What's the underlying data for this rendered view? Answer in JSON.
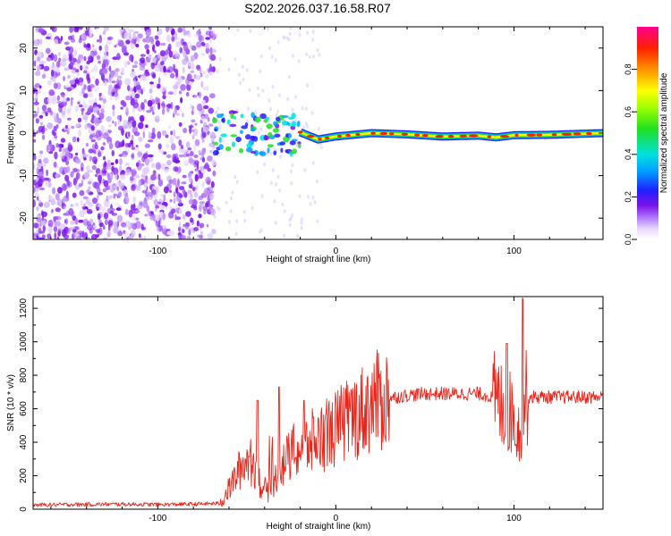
{
  "title": "S202.2026.037.16.58.R07",
  "colors": {
    "snr_line": "#e8261c",
    "noise_purple": "#7a12e8",
    "axis": "#000000",
    "background": "#ffffff"
  },
  "chart_data": [
    {
      "type": "heatmap",
      "name": "spectrogram",
      "xlabel": "Height of straight line (km)",
      "ylabel": "Frequency (Hz)",
      "xlim": [
        -170,
        150
      ],
      "ylim": [
        -25,
        25
      ],
      "xticks": [
        -100,
        0,
        100
      ],
      "yticks": [
        -20,
        -10,
        0,
        10,
        20
      ],
      "noise_region_x": [
        -170,
        -68
      ],
      "transition_region_x": [
        -68,
        -20
      ],
      "carrier_frequency": 0,
      "carrier_track_x": [
        -20,
        -10,
        0,
        20,
        40,
        60,
        80,
        90,
        100,
        120,
        150
      ],
      "carrier_track_freq": [
        0.2,
        -1.5,
        -0.8,
        0.0,
        -0.3,
        -0.8,
        -0.6,
        -1.0,
        -0.5,
        -0.4,
        0.0
      ],
      "colorbar": {
        "label": "Normalized spectral amplitude",
        "range": [
          0.0,
          1.0
        ],
        "ticks": [
          0.0,
          0.2,
          0.4,
          0.6,
          0.8
        ],
        "tick_labels": [
          "0.0",
          "0.2",
          "0.4",
          "0.6",
          "0.8"
        ]
      }
    },
    {
      "type": "line",
      "name": "snr",
      "xlabel": "Height of straight line (km)",
      "ylabel": "SNR (10 * v/v)",
      "xlim": [
        -170,
        150
      ],
      "ylim": [
        0,
        1270
      ],
      "xticks": [
        -100,
        0,
        100
      ],
      "yticks": [
        0,
        200,
        400,
        600,
        800,
        1000,
        1200
      ],
      "series": [
        {
          "name": "SNR",
          "x": [
            -170,
            -150,
            -120,
            -100,
            -80,
            -65,
            -60,
            -55,
            -50,
            -45,
            -42,
            -38,
            -35,
            -30,
            -25,
            -20,
            -15,
            -10,
            -5,
            0,
            5,
            10,
            15,
            20,
            25,
            30,
            40,
            50,
            60,
            70,
            80,
            85,
            90,
            95,
            100,
            103,
            105,
            108,
            110,
            120,
            130,
            140,
            150
          ],
          "y": [
            25,
            28,
            30,
            28,
            30,
            35,
            120,
            220,
            300,
            250,
            130,
            110,
            160,
            260,
            330,
            360,
            390,
            420,
            450,
            480,
            520,
            550,
            590,
            630,
            650,
            665,
            680,
            690,
            690,
            690,
            690,
            680,
            650,
            600,
            560,
            450,
            640,
            670,
            670,
            670,
            670,
            670,
            670
          ]
        }
      ],
      "peaks": [
        {
          "x": -44,
          "y": 650
        },
        {
          "x": -32,
          "y": 730
        },
        {
          "x": -18,
          "y": 650
        },
        {
          "x": 96,
          "y": 990
        },
        {
          "x": 105,
          "y": 1260
        }
      ]
    }
  ]
}
